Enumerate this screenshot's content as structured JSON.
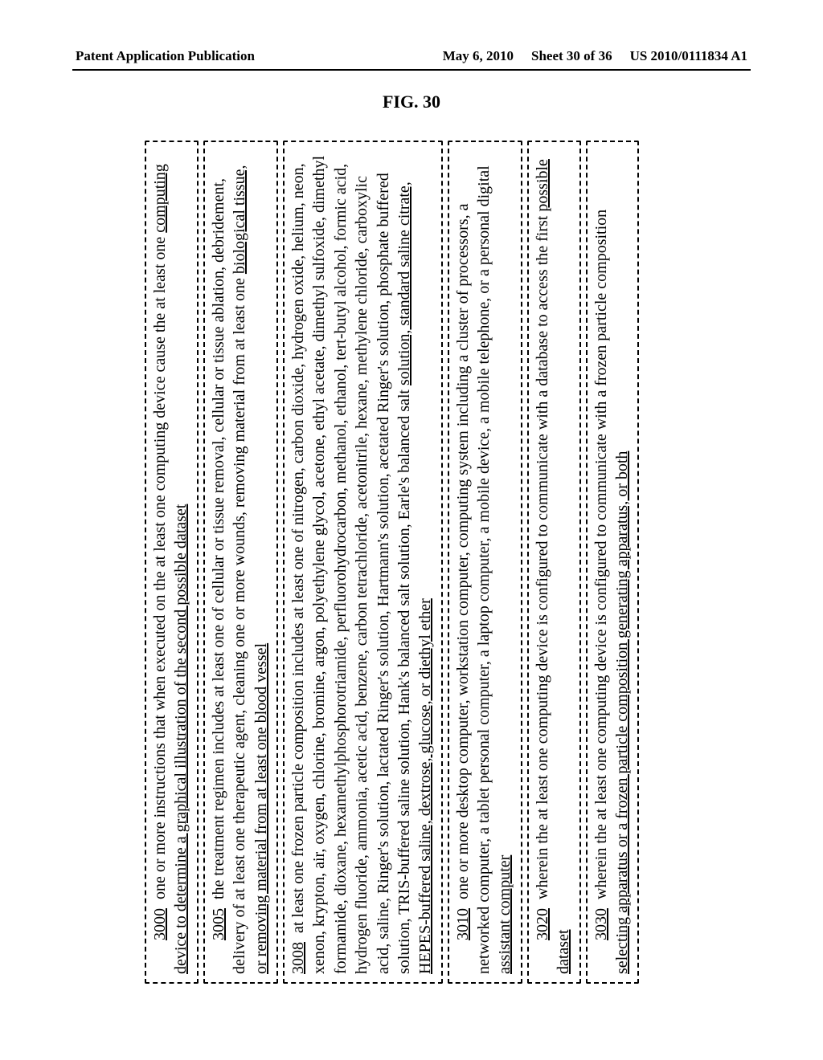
{
  "header": {
    "left": "Patent Application Publication",
    "date": "May 6, 2010",
    "sheet": "Sheet 30 of 36",
    "pubno": "US 2010/0111834 A1"
  },
  "figure_label": "FIG. 30",
  "claims": [
    {
      "num": "3000",
      "text_html": "one or more instructions that when executed on the at least one computing device cause the at least one <span class='u'>computing device to determine a graphical illustration of the second possible dataset</span>"
    },
    {
      "num": "3005",
      "text_html": "the treatment regimen includes at least one of cellular or tissue removal, cellular or tissue ablation, debridement, delivery of at least one therapeutic agent, cleaning one or more wounds, removing material from at least one <span class='u'>biological tissue, or removing material from at least one blood vessel</span>"
    },
    {
      "num": "3008",
      "text_html": "at least one frozen particle composition includes at least one of nitrogen, carbon dioxide, hydrogen oxide, helium, neon, xenon, krypton, air, oxygen, chlorine, bromine, argon, polyethylene glycol, acetone, ethyl acetate, dimethyl sulfoxide, dimethyl formamide, dioxane, hexamethylphosphorotriamide, perfluorohydrocarbon, methanol, ethanol, tert-butyl alcohol, formic acid, hydrogen fluoride, ammonia, acetic acid, benzene, carbon tetrachloride, acetonitrile, hexane, methylene chloride, carboxylic acid, saline, Ringer's solution, lactated Ringer's solution, Hartmann's solution, acetated Ringer's solution, phosphate buffered solution, TRIS-buffered saline solution, Hank's balanced salt solution, Earle's balanced salt <span class='u'>solution, standard saline citrate, HEPES-buffered saline, dextrose, glucose, or diethyl ether</span>"
    },
    {
      "num": "3010",
      "text_html": "one or more desktop computer, workstation computer, computing system including a cluster of processors, a networked computer, a tablet personal computer, a laptop computer, a mobile device, a mobile telephone, or a personal digital <span class='u'>assistant computer</span>"
    },
    {
      "num": "3020",
      "text_html": "wherein the at least one computing device is configured to communicate with a database to access the first <span class='u'>possible dataset</span>"
    },
    {
      "num": "3030",
      "text_html": "wherein the at least one computing device is configured to communicate with a frozen particle composition <span class='u'>selecting apparatus or a frozen particle composition generating apparatus, or both</span>"
    }
  ]
}
